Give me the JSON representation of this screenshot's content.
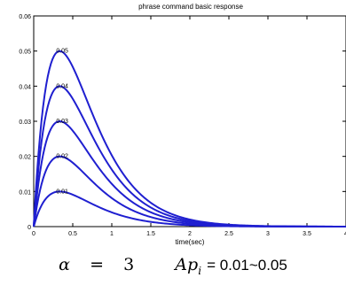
{
  "chart_data": {
    "type": "line",
    "title": "phrase command basic response",
    "xlabel": "time(sec)",
    "ylabel": "",
    "xlim": [
      0,
      4
    ],
    "ylim": [
      0,
      0.06
    ],
    "x_ticks": [
      "0",
      "0.5",
      "1",
      "1.5",
      "2",
      "2.5",
      "3",
      "3.5",
      "4"
    ],
    "y_ticks": [
      "0",
      "0.01",
      "0.02",
      "0.03",
      "0.04",
      "0.05",
      "0.06"
    ],
    "grid": false,
    "line_color": "#1f1fd0",
    "alpha": 3,
    "series": [
      {
        "name": "0.01",
        "amplitude": 0.01
      },
      {
        "name": "0.02",
        "amplitude": 0.02
      },
      {
        "name": "0.03",
        "amplitude": 0.03
      },
      {
        "name": "0.04",
        "amplitude": 0.04
      },
      {
        "name": "0.05",
        "amplitude": 0.05
      }
    ]
  },
  "caption": {
    "alpha_symbol": "α",
    "equals": "=",
    "alpha_value": "3",
    "ap": "Ap",
    "ap_sub": "i",
    "ap_range": "= 0.01~0.05"
  }
}
